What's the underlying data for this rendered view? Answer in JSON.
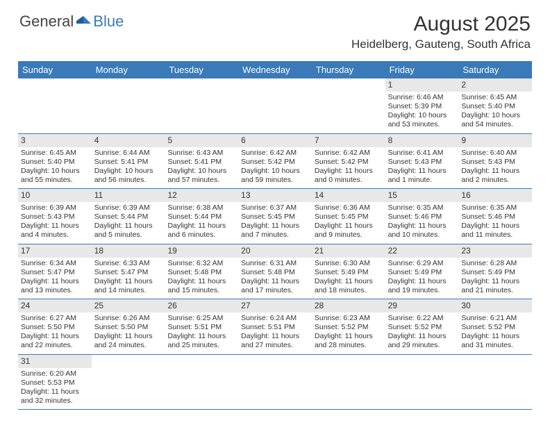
{
  "logo": {
    "text1": "General",
    "text2": "Blue"
  },
  "title": "August 2025",
  "location": "Heidelberg, Gauteng, South Africa",
  "header_bg": "#3a7ab8",
  "daynum_bg": "#e8e8e8",
  "days": [
    "Sunday",
    "Monday",
    "Tuesday",
    "Wednesday",
    "Thursday",
    "Friday",
    "Saturday"
  ],
  "weeks": [
    [
      null,
      null,
      null,
      null,
      null,
      {
        "n": "1",
        "sr": "6:46 AM",
        "ss": "5:39 PM",
        "dl": "10 hours and 53 minutes."
      },
      {
        "n": "2",
        "sr": "6:45 AM",
        "ss": "5:40 PM",
        "dl": "10 hours and 54 minutes."
      }
    ],
    [
      {
        "n": "3",
        "sr": "6:45 AM",
        "ss": "5:40 PM",
        "dl": "10 hours and 55 minutes."
      },
      {
        "n": "4",
        "sr": "6:44 AM",
        "ss": "5:41 PM",
        "dl": "10 hours and 56 minutes."
      },
      {
        "n": "5",
        "sr": "6:43 AM",
        "ss": "5:41 PM",
        "dl": "10 hours and 57 minutes."
      },
      {
        "n": "6",
        "sr": "6:42 AM",
        "ss": "5:42 PM",
        "dl": "10 hours and 59 minutes."
      },
      {
        "n": "7",
        "sr": "6:42 AM",
        "ss": "5:42 PM",
        "dl": "11 hours and 0 minutes."
      },
      {
        "n": "8",
        "sr": "6:41 AM",
        "ss": "5:43 PM",
        "dl": "11 hours and 1 minute."
      },
      {
        "n": "9",
        "sr": "6:40 AM",
        "ss": "5:43 PM",
        "dl": "11 hours and 2 minutes."
      }
    ],
    [
      {
        "n": "10",
        "sr": "6:39 AM",
        "ss": "5:43 PM",
        "dl": "11 hours and 4 minutes."
      },
      {
        "n": "11",
        "sr": "6:39 AM",
        "ss": "5:44 PM",
        "dl": "11 hours and 5 minutes."
      },
      {
        "n": "12",
        "sr": "6:38 AM",
        "ss": "5:44 PM",
        "dl": "11 hours and 6 minutes."
      },
      {
        "n": "13",
        "sr": "6:37 AM",
        "ss": "5:45 PM",
        "dl": "11 hours and 7 minutes."
      },
      {
        "n": "14",
        "sr": "6:36 AM",
        "ss": "5:45 PM",
        "dl": "11 hours and 9 minutes."
      },
      {
        "n": "15",
        "sr": "6:35 AM",
        "ss": "5:46 PM",
        "dl": "11 hours and 10 minutes."
      },
      {
        "n": "16",
        "sr": "6:35 AM",
        "ss": "5:46 PM",
        "dl": "11 hours and 11 minutes."
      }
    ],
    [
      {
        "n": "17",
        "sr": "6:34 AM",
        "ss": "5:47 PM",
        "dl": "11 hours and 13 minutes."
      },
      {
        "n": "18",
        "sr": "6:33 AM",
        "ss": "5:47 PM",
        "dl": "11 hours and 14 minutes."
      },
      {
        "n": "19",
        "sr": "6:32 AM",
        "ss": "5:48 PM",
        "dl": "11 hours and 15 minutes."
      },
      {
        "n": "20",
        "sr": "6:31 AM",
        "ss": "5:48 PM",
        "dl": "11 hours and 17 minutes."
      },
      {
        "n": "21",
        "sr": "6:30 AM",
        "ss": "5:49 PM",
        "dl": "11 hours and 18 minutes."
      },
      {
        "n": "22",
        "sr": "6:29 AM",
        "ss": "5:49 PM",
        "dl": "11 hours and 19 minutes."
      },
      {
        "n": "23",
        "sr": "6:28 AM",
        "ss": "5:49 PM",
        "dl": "11 hours and 21 minutes."
      }
    ],
    [
      {
        "n": "24",
        "sr": "6:27 AM",
        "ss": "5:50 PM",
        "dl": "11 hours and 22 minutes."
      },
      {
        "n": "25",
        "sr": "6:26 AM",
        "ss": "5:50 PM",
        "dl": "11 hours and 24 minutes."
      },
      {
        "n": "26",
        "sr": "6:25 AM",
        "ss": "5:51 PM",
        "dl": "11 hours and 25 minutes."
      },
      {
        "n": "27",
        "sr": "6:24 AM",
        "ss": "5:51 PM",
        "dl": "11 hours and 27 minutes."
      },
      {
        "n": "28",
        "sr": "6:23 AM",
        "ss": "5:52 PM",
        "dl": "11 hours and 28 minutes."
      },
      {
        "n": "29",
        "sr": "6:22 AM",
        "ss": "5:52 PM",
        "dl": "11 hours and 29 minutes."
      },
      {
        "n": "30",
        "sr": "6:21 AM",
        "ss": "5:52 PM",
        "dl": "11 hours and 31 minutes."
      }
    ],
    [
      {
        "n": "31",
        "sr": "6:20 AM",
        "ss": "5:53 PM",
        "dl": "11 hours and 32 minutes."
      },
      null,
      null,
      null,
      null,
      null,
      null
    ]
  ],
  "labels": {
    "sunrise": "Sunrise: ",
    "sunset": "Sunset: ",
    "daylight": "Daylight: "
  }
}
